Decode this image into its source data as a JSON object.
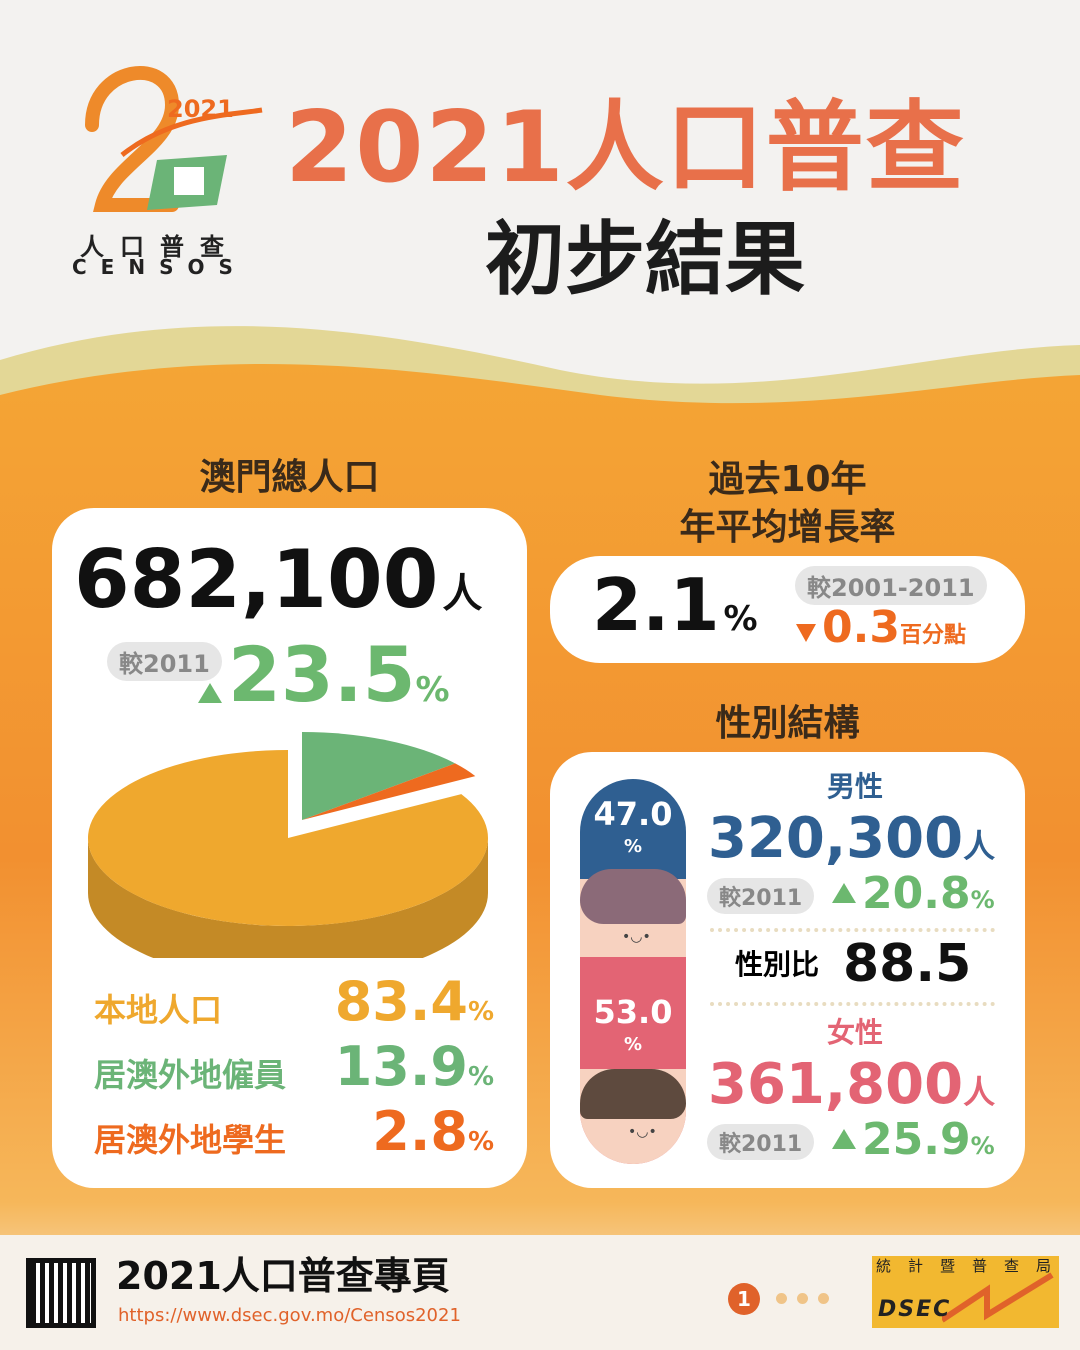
{
  "header": {
    "logo": {
      "year": "2021",
      "text_cn": "人口普查",
      "text_pt": "CENSOS"
    },
    "title": "2021人口普查",
    "subtitle": "初步結果"
  },
  "total_population": {
    "heading": "澳門總人口",
    "value": "682,100",
    "unit": "人",
    "compare_label": "較2011",
    "change": "23.5",
    "change_unit": "%",
    "change_direction": "up"
  },
  "growth_rate": {
    "heading_line1": "過去10年",
    "heading_line2": "年平均增長率",
    "value": "2.1",
    "unit": "%",
    "compare_label": "較2001-2011",
    "change": "0.3",
    "change_unit": "百分點",
    "change_direction": "down"
  },
  "chart_data": {
    "type": "pie",
    "categories": [
      "本地人口",
      "居澳外地僱員",
      "居澳外地學生"
    ],
    "values": [
      83.4,
      13.9,
      2.8
    ],
    "unit": "%",
    "colors": [
      "#efa82e",
      "#6bb477",
      "#ee6a1f"
    ]
  },
  "gender": {
    "heading": "性別結構",
    "male": {
      "label": "男性",
      "share": "47.0",
      "share_unit": "%",
      "value": "320,300",
      "unit": "人",
      "compare_label": "較2011",
      "change": "20.8",
      "change_unit": "%",
      "color": "#2f5f91"
    },
    "female": {
      "label": "女性",
      "share": "53.0",
      "share_unit": "%",
      "value": "361,800",
      "unit": "人",
      "compare_label": "較2011",
      "change": "25.9",
      "change_unit": "%",
      "color": "#e36474"
    },
    "ratio_label": "性別比",
    "ratio_value": "88.5"
  },
  "footer": {
    "title": "2021人口普查專頁",
    "url": "https://www.dsec.gov.mo/Censos2021",
    "page_indicator": "1",
    "dsec_logo_cn": "統計暨普查局",
    "dsec_logo_en": "DSEC"
  },
  "colors": {
    "accent": "#e8704a",
    "orange_bg": "#f39a32",
    "up": "#6cb86f",
    "down": "#ee6a1f"
  }
}
